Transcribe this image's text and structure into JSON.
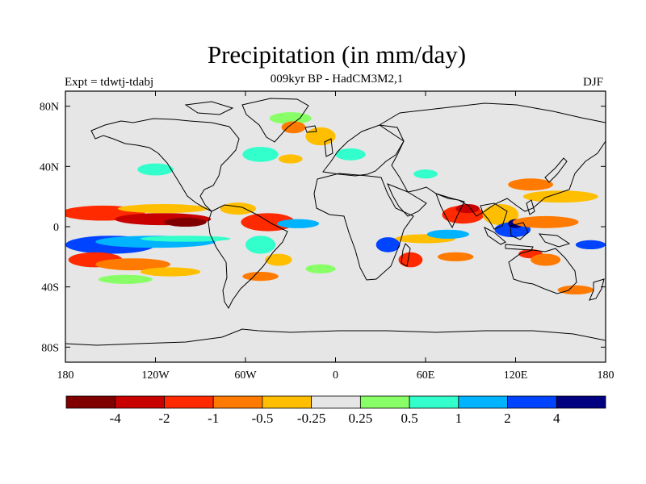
{
  "title": "Precipitation (in mm/day)",
  "subtitle": "009kyr BP - HadCM3M2,1",
  "experiment_label": "Expt = tdwtj-tdabj",
  "season": "DJF",
  "chart_data": {
    "type": "heatmap",
    "projection": "cylindrical-equidistant",
    "title": "Precipitation (in mm/day)",
    "subtitle": "009kyr BP - HadCM3M2,1",
    "lon_range": [
      -180,
      180
    ],
    "lat_range": [
      -90,
      90
    ],
    "x_ticks": [
      {
        "value": -180,
        "label": "180"
      },
      {
        "value": -120,
        "label": "120W"
      },
      {
        "value": -60,
        "label": "60W"
      },
      {
        "value": 0,
        "label": "0"
      },
      {
        "value": 60,
        "label": "60E"
      },
      {
        "value": 120,
        "label": "120E"
      },
      {
        "value": 180,
        "label": "180"
      }
    ],
    "y_ticks": [
      {
        "value": 80,
        "label": "80N"
      },
      {
        "value": 40,
        "label": "40N"
      },
      {
        "value": 0,
        "label": "0"
      },
      {
        "value": -40,
        "label": "40S"
      },
      {
        "value": -80,
        "label": "80S"
      }
    ],
    "colorbar": {
      "colors": [
        "#800000",
        "#c80000",
        "#ff2a00",
        "#ff7a00",
        "#ffbf00",
        "#e6e6e6",
        "#88ff66",
        "#33ffcc",
        "#00b3ff",
        "#0044ff",
        "#000080"
      ],
      "labels": [
        "-4",
        "-2",
        "-1",
        "-0.5",
        "-0.25",
        "0.25",
        "0.5",
        "1",
        "2",
        "4"
      ]
    },
    "anomaly_regions": [
      {
        "lon": -155,
        "lat": 9,
        "rlon": 28,
        "rlat": 5,
        "level": 2
      },
      {
        "lon": -115,
        "lat": 5,
        "rlon": 32,
        "rlat": 4,
        "level": 1
      },
      {
        "lon": -100,
        "lat": 3,
        "rlon": 14,
        "rlat": 3,
        "level": 0
      },
      {
        "lon": -115,
        "lat": 12,
        "rlon": 30,
        "rlat": 3,
        "level": 4
      },
      {
        "lon": -150,
        "lat": -12,
        "rlon": 30,
        "rlat": 6,
        "level": 9
      },
      {
        "lon": -120,
        "lat": -10,
        "rlon": 40,
        "rlat": 4,
        "level": 8
      },
      {
        "lon": -100,
        "lat": -8,
        "rlon": 30,
        "rlat": 2,
        "level": 7
      },
      {
        "lon": -160,
        "lat": -22,
        "rlon": 18,
        "rlat": 5,
        "level": 2
      },
      {
        "lon": -135,
        "lat": -25,
        "rlon": 25,
        "rlat": 4,
        "level": 3
      },
      {
        "lon": -140,
        "lat": -35,
        "rlon": 18,
        "rlat": 3,
        "level": 6
      },
      {
        "lon": -110,
        "lat": -30,
        "rlon": 20,
        "rlat": 3,
        "level": 4
      },
      {
        "lon": -45,
        "lat": 3,
        "rlon": 18,
        "rlat": 6,
        "level": 2
      },
      {
        "lon": -65,
        "lat": 12,
        "rlon": 12,
        "rlat": 4,
        "level": 4
      },
      {
        "lon": -25,
        "lat": 2,
        "rlon": 14,
        "rlat": 3,
        "level": 8
      },
      {
        "lon": -50,
        "lat": -12,
        "rlon": 10,
        "rlat": 6,
        "level": 7
      },
      {
        "lon": -38,
        "lat": -22,
        "rlon": 9,
        "rlat": 4,
        "level": 4
      },
      {
        "lon": -50,
        "lat": -33,
        "rlon": 12,
        "rlat": 3,
        "level": 3
      },
      {
        "lon": -30,
        "lat": 72,
        "rlon": 14,
        "rlat": 4,
        "level": 6
      },
      {
        "lon": -28,
        "lat": 66,
        "rlon": 8,
        "rlat": 4,
        "level": 3
      },
      {
        "lon": -10,
        "lat": 60,
        "rlon": 10,
        "rlat": 6,
        "level": 4
      },
      {
        "lon": -50,
        "lat": 48,
        "rlon": 12,
        "rlat": 5,
        "level": 7
      },
      {
        "lon": -120,
        "lat": 38,
        "rlon": 12,
        "rlat": 4,
        "level": 7
      },
      {
        "lon": 35,
        "lat": -12,
        "rlon": 8,
        "rlat": 5,
        "level": 9
      },
      {
        "lon": 50,
        "lat": -22,
        "rlon": 8,
        "rlat": 5,
        "level": 2
      },
      {
        "lon": 60,
        "lat": -8,
        "rlon": 20,
        "rlat": 3,
        "level": 4
      },
      {
        "lon": 75,
        "lat": -5,
        "rlon": 14,
        "rlat": 3,
        "level": 8
      },
      {
        "lon": 85,
        "lat": 8,
        "rlon": 14,
        "rlat": 6,
        "level": 2
      },
      {
        "lon": 88,
        "lat": 12,
        "rlon": 8,
        "rlat": 3,
        "level": 1
      },
      {
        "lon": 110,
        "lat": 8,
        "rlon": 12,
        "rlat": 7,
        "level": 4
      },
      {
        "lon": 118,
        "lat": -2,
        "rlon": 12,
        "rlat": 5,
        "level": 9
      },
      {
        "lon": 120,
        "lat": 2,
        "rlon": 5,
        "rlat": 3,
        "level": 10
      },
      {
        "lon": 140,
        "lat": 3,
        "rlon": 22,
        "rlat": 4,
        "level": 3
      },
      {
        "lon": 150,
        "lat": 20,
        "rlon": 25,
        "rlat": 4,
        "level": 4
      },
      {
        "lon": 130,
        "lat": 28,
        "rlon": 15,
        "rlat": 4,
        "level": 3
      },
      {
        "lon": 130,
        "lat": -18,
        "rlon": 8,
        "rlat": 3,
        "level": 2
      },
      {
        "lon": 140,
        "lat": -22,
        "rlon": 10,
        "rlat": 4,
        "level": 3
      },
      {
        "lon": 170,
        "lat": -12,
        "rlon": 10,
        "rlat": 3,
        "level": 9
      },
      {
        "lon": 160,
        "lat": -42,
        "rlon": 12,
        "rlat": 3,
        "level": 3
      },
      {
        "lon": 80,
        "lat": -20,
        "rlon": 12,
        "rlat": 3,
        "level": 3
      },
      {
        "lon": 60,
        "lat": 35,
        "rlon": 8,
        "rlat": 3,
        "level": 7
      },
      {
        "lon": 10,
        "lat": 48,
        "rlon": 10,
        "rlat": 4,
        "level": 7
      },
      {
        "lon": -30,
        "lat": 45,
        "rlon": 8,
        "rlat": 3,
        "level": 4
      },
      {
        "lon": -10,
        "lat": -28,
        "rlon": 10,
        "rlat": 3,
        "level": 6
      }
    ]
  }
}
